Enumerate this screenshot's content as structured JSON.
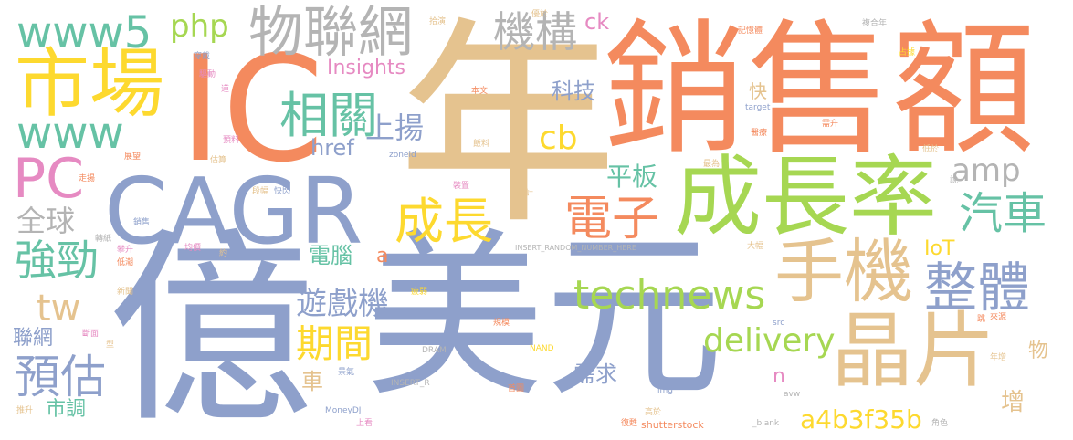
{
  "palette": {
    "blue": "#8ea0cb",
    "orange": "#f48a5e",
    "tan": "#e5c38f",
    "green": "#a6d752",
    "teal": "#66c2a5",
    "yellow": "#fdd92f",
    "pink": "#e68ac2",
    "gray": "#b4b4b4"
  },
  "words": [
    {
      "text": "億",
      "color": "#8ea0cb"
    },
    {
      "text": "美元",
      "color": "#8ea0cb"
    },
    {
      "text": "年",
      "color": "#e5c38f"
    },
    {
      "text": "銷售額",
      "color": "#f48a5e"
    },
    {
      "text": "IC",
      "color": "#f48a5e"
    },
    {
      "text": "CAGR",
      "color": "#8ea0cb"
    },
    {
      "text": "成長率",
      "color": "#a6d752"
    },
    {
      "text": "晶片",
      "color": "#e5c38f"
    },
    {
      "text": "手機",
      "color": "#e5c38f"
    },
    {
      "text": "市場",
      "color": "#fdd92f"
    },
    {
      "text": "物聯網",
      "color": "#b4b4b4"
    },
    {
      "text": "www5",
      "color": "#66c2a5"
    },
    {
      "text": "www",
      "color": "#66c2a5"
    },
    {
      "text": "PC",
      "color": "#e68ac2"
    },
    {
      "text": "technews",
      "color": "#a6d752"
    },
    {
      "text": "整體",
      "color": "#8ea0cb"
    },
    {
      "text": "相關",
      "color": "#66c2a5"
    },
    {
      "text": "成長",
      "color": "#fdd92f"
    },
    {
      "text": "電子",
      "color": "#f48a5e"
    },
    {
      "text": "汽車",
      "color": "#66c2a5"
    },
    {
      "text": "機構",
      "color": "#b4b4b4"
    },
    {
      "text": "delivery",
      "color": "#a6d752"
    },
    {
      "text": "預估",
      "color": "#8ea0cb"
    },
    {
      "text": "強勁",
      "color": "#66c2a5"
    },
    {
      "text": "期間",
      "color": "#fdd92f"
    },
    {
      "text": "遊戲機",
      "color": "#8ea0cb"
    },
    {
      "text": "a4b3f35b",
      "color": "#fdd92f"
    },
    {
      "text": "上揚",
      "color": "#8ea0cb"
    },
    {
      "text": "php",
      "color": "#a6d752"
    },
    {
      "text": "cb",
      "color": "#fdd92f"
    },
    {
      "text": "amp",
      "color": "#b4b4b4"
    },
    {
      "text": "tw",
      "color": "#e5c38f"
    },
    {
      "text": "全球",
      "color": "#b4b4b4"
    },
    {
      "text": "平板",
      "color": "#66c2a5"
    },
    {
      "text": "電腦",
      "color": "#66c2a5"
    },
    {
      "text": "科技",
      "color": "#8ea0cb"
    },
    {
      "text": "Insights",
      "color": "#e68ac2"
    },
    {
      "text": "ck",
      "color": "#e68ac2"
    },
    {
      "text": "href",
      "color": "#8ea0cb"
    },
    {
      "text": "IoT",
      "color": "#fdd92f"
    },
    {
      "text": "需求",
      "color": "#8ea0cb"
    },
    {
      "text": "市調",
      "color": "#66c2a5"
    },
    {
      "text": "聯網",
      "color": "#8ea0cb"
    },
    {
      "text": "車",
      "color": "#e5c38f"
    },
    {
      "text": "增",
      "color": "#e5c38f"
    },
    {
      "text": "快",
      "color": "#e5c38f"
    },
    {
      "text": "物",
      "color": "#e5c38f"
    },
    {
      "text": "n",
      "color": "#e68ac2"
    },
    {
      "text": "a",
      "color": "#f48a5e"
    },
    {
      "text": "INSERT_RANDOM_NUMBER_HERE",
      "color": "#b4b4b4"
    },
    {
      "text": "INSERT_R",
      "color": "#b4b4b4"
    },
    {
      "text": "MoneyDJ",
      "color": "#8ea0cb"
    },
    {
      "text": "shutterstock",
      "color": "#f48a5e"
    },
    {
      "text": "DRAM",
      "color": "#b4b4b4"
    },
    {
      "text": "NAND",
      "color": "#fdd92f"
    },
    {
      "text": "zoneid",
      "color": "#8ea0cb"
    },
    {
      "text": "target",
      "color": "#8ea0cb"
    },
    {
      "text": "_blank",
      "color": "#b4b4b4"
    },
    {
      "text": "src",
      "color": "#8ea0cb"
    },
    {
      "text": "img",
      "color": "#8ea0cb"
    },
    {
      "text": "avw",
      "color": "#b4b4b4"
    },
    {
      "text": "穿戴",
      "color": "#8ea0cb"
    },
    {
      "text": "本文",
      "color": "#f48a5e"
    },
    {
      "text": "記憶體",
      "color": "#f48a5e"
    },
    {
      "text": "複合年",
      "color": "#b4b4b4"
    },
    {
      "text": "占據",
      "color": "#fdd92f"
    },
    {
      "text": "醫療",
      "color": "#f48a5e"
    },
    {
      "text": "低於",
      "color": "#e5c38f"
    },
    {
      "text": "驅動",
      "color": "#e68ac2"
    },
    {
      "text": "預料",
      "color": "#e68ac2"
    },
    {
      "text": "展望",
      "color": "#f48a5e"
    },
    {
      "text": "估算",
      "color": "#e5c38f"
    },
    {
      "text": "走揚",
      "color": "#f48a5e"
    },
    {
      "text": "飯料",
      "color": "#e5c38f"
    },
    {
      "text": "裝置",
      "color": "#e68ac2"
    },
    {
      "text": "估計",
      "color": "#e5c38f"
    },
    {
      "text": "最為",
      "color": "#e5c38f"
    },
    {
      "text": "大幅",
      "color": "#e5c38f"
    },
    {
      "text": "銷售",
      "color": "#8ea0cb"
    },
    {
      "text": "均價",
      "color": "#e68ac2"
    },
    {
      "text": "攀升",
      "color": "#e68ac2"
    },
    {
      "text": "低潮",
      "color": "#f48a5e"
    },
    {
      "text": "轉紙",
      "color": "#b4b4b4"
    },
    {
      "text": "新聞",
      "color": "#e5c38f"
    },
    {
      "text": "疲弱",
      "color": "#fdd92f"
    },
    {
      "text": "規模",
      "color": "#f48a5e"
    },
    {
      "text": "推升",
      "color": "#e5c38f"
    },
    {
      "text": "上看",
      "color": "#e68ac2"
    },
    {
      "text": "高於",
      "color": "#e5c38f"
    },
    {
      "text": "首圖",
      "color": "#f48a5e"
    },
    {
      "text": "復甦",
      "color": "#f48a5e"
    },
    {
      "text": "角色",
      "color": "#b4b4b4"
    },
    {
      "text": "來源",
      "color": "#f48a5e"
    },
    {
      "text": "年增",
      "color": "#e5c38f"
    },
    {
      "text": "景氣",
      "color": "#8ea0cb"
    },
    {
      "text": "型",
      "color": "#e5c38f"
    },
    {
      "text": "說",
      "color": "#b4b4b4"
    },
    {
      "text": "跳",
      "color": "#f48a5e"
    },
    {
      "text": "約",
      "color": "#e5c38f"
    },
    {
      "text": "快閃",
      "color": "#8ea0cb"
    },
    {
      "text": "段幅",
      "color": "#e5c38f"
    },
    {
      "text": "斷面",
      "color": "#e68ac2"
    },
    {
      "text": "拾演",
      "color": "#e5c38f"
    },
    {
      "text": "優於",
      "color": "#e5c38f"
    },
    {
      "text": "需升",
      "color": "#f48a5e"
    },
    {
      "text": "道",
      "color": "#e68ac2"
    }
  ]
}
